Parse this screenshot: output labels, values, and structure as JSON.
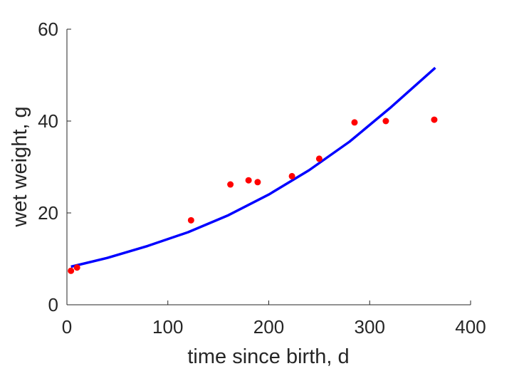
{
  "chart_data": {
    "type": "scatter",
    "xlabel": "time since birth, d",
    "ylabel": "wet weight, g",
    "xlim": [
      0,
      400
    ],
    "ylim": [
      0,
      60
    ],
    "xticks": [
      0,
      100,
      200,
      300,
      400
    ],
    "yticks": [
      0,
      20,
      40,
      60
    ],
    "grid": false,
    "series": [
      {
        "kind": "scatter",
        "color": "#ff0000",
        "points": [
          {
            "x": 4,
            "y": 7.4
          },
          {
            "x": 10,
            "y": 8.1
          },
          {
            "x": 123,
            "y": 18.4
          },
          {
            "x": 162,
            "y": 26.2
          },
          {
            "x": 180,
            "y": 27.1
          },
          {
            "x": 189,
            "y": 26.7
          },
          {
            "x": 223,
            "y": 28.0
          },
          {
            "x": 250,
            "y": 31.8
          },
          {
            "x": 285,
            "y": 39.7
          },
          {
            "x": 316,
            "y": 40.0
          },
          {
            "x": 364,
            "y": 40.3
          }
        ]
      },
      {
        "kind": "line",
        "color": "#0000ff",
        "x": [
          4,
          40,
          80,
          120,
          160,
          200,
          240,
          280,
          320,
          365
        ],
        "y": [
          8.3,
          10.2,
          12.8,
          15.8,
          19.5,
          24.0,
          29.3,
          35.5,
          42.8,
          51.6
        ]
      }
    ]
  }
}
